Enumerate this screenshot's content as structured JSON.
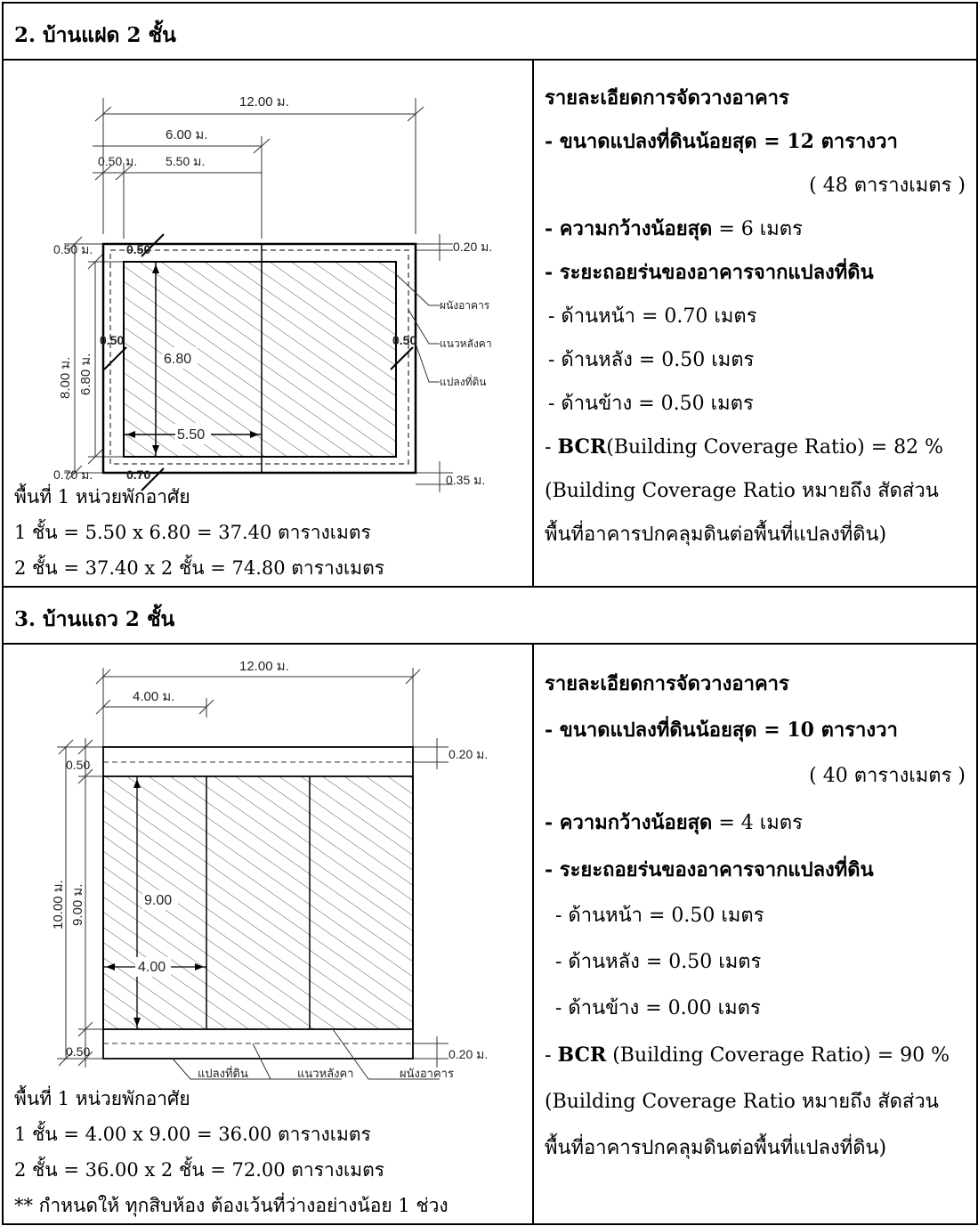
{
  "section2": {
    "title": "2. บ้านแฝด 2 ชั้น",
    "drawing": {
      "dim_total": "12.00 ม.",
      "dim_half": "6.00 ม.",
      "dim_side": "0.50 ม.",
      "dim_inner": "5.50 ม.",
      "dim_back": "0.50 ม.",
      "dim_back_inner": "0.50",
      "dim_roof_top": "0.20 ม.",
      "dim_depth_total": "8.00 ม.",
      "dim_depth_build": "6.80 ม.",
      "dim_side_left": "0.50",
      "dim_side_right": "0.50",
      "dim_inner_depth": "6.80",
      "dim_inner_width": "5.50",
      "dim_front": "0.70 ม.",
      "dim_front_inner": "0.70",
      "dim_roof_bottom": "0.35 ม.",
      "label_wall": "ผนังอาคาร",
      "label_roof": "แนวหลังคา",
      "label_plot": "แปลงที่ดิน"
    },
    "area": {
      "heading": "พื้นที่ 1 หน่วยพักอาศัย",
      "floor1": "1 ชั้น = 5.50 x 6.80 = 37.40 ตารางเมตร",
      "floor2": "2 ชั้น = 37.40 x 2 ชั้น = 74.80 ตารางเมตร"
    },
    "details": {
      "heading": "รายละเอียดการจัดวางอาคาร",
      "min_plot_label": "- ขนาดแปลงที่ดินน้อยสุด = 12 ตารางวา",
      "min_plot_sqm": "( 48 ตารางเมตร )",
      "min_width_label": "- ความกว้างน้อยสุด",
      "min_width_value": " = 6 เมตร",
      "setback_label": "- ระยะถอยร่นของอาคารจากแปลงที่ดิน",
      "setback_front": "- ด้านหน้า = 0.70 เมตร",
      "setback_back": "- ด้านหลัง = 0.50 เมตร",
      "setback_side": "- ด้านข้าง = 0.50 เมตร",
      "bcr_prefix": "- ",
      "bcr_label": "BCR",
      "bcr_value": "(Building Coverage Ratio) = 82 %",
      "bcr_note1": "(Building Coverage Ratio หมายถึง สัดส่วน",
      "bcr_note2": "พื้นที่อาคารปกคลุมดินต่อพื้นที่แปลงที่ดิน)"
    }
  },
  "section3": {
    "title": "3. บ้านแถว 2 ชั้น",
    "drawing": {
      "dim_total": "12.00 ม.",
      "dim_unit": "4.00 ม.",
      "dim_back": "0.50",
      "dim_roof_top": "0.20 ม.",
      "dim_depth_total": "10.00 ม.",
      "dim_depth_build": "9.00 ม.",
      "dim_inner_depth": "9.00",
      "dim_inner_width": "4.00",
      "dim_front": "0.50",
      "dim_roof_bottom": "0.20 ม.",
      "label_plot": "แปลงที่ดิน",
      "label_roof": "แนวหลังคา",
      "label_wall": "ผนังอาคาร"
    },
    "area": {
      "heading": "พื้นที่ 1 หน่วยพักอาศัย",
      "floor1": "1 ชั้น = 4.00 x 9.00 = 36.00 ตารางเมตร",
      "floor2": "2 ชั้น = 36.00 x 2 ชั้น = 72.00 ตารางเมตร",
      "note": "** กำหนดให้ ทุกสิบห้อง ต้องเว้นที่ว่างอย่างน้อย 1 ช่วง"
    },
    "details": {
      "heading": "รายละเอียดการจัดวางอาคาร",
      "min_plot_label": "- ขนาดแปลงที่ดินน้อยสุด = 10 ตารางวา",
      "min_plot_sqm": "( 40 ตารางเมตร )",
      "min_width_label": "- ความกว้างน้อยสุด",
      "min_width_value": " = 4 เมตร",
      "setback_label": "- ระยะถอยร่นของอาคารจากแปลงที่ดิน",
      "setback_front": "- ด้านหน้า = 0.50 เมตร",
      "setback_back": "- ด้านหลัง = 0.50 เมตร",
      "setback_side": "- ด้านข้าง = 0.00 เมตร",
      "bcr_prefix": "- ",
      "bcr_label": "BCR",
      "bcr_value": " (Building Coverage Ratio) = 90 %",
      "bcr_note1": "(Building Coverage Ratio หมายถึง สัดส่วน",
      "bcr_note2": "พื้นที่อาคารปกคลุมดินต่อพื้นที่แปลงที่ดิน)"
    }
  }
}
